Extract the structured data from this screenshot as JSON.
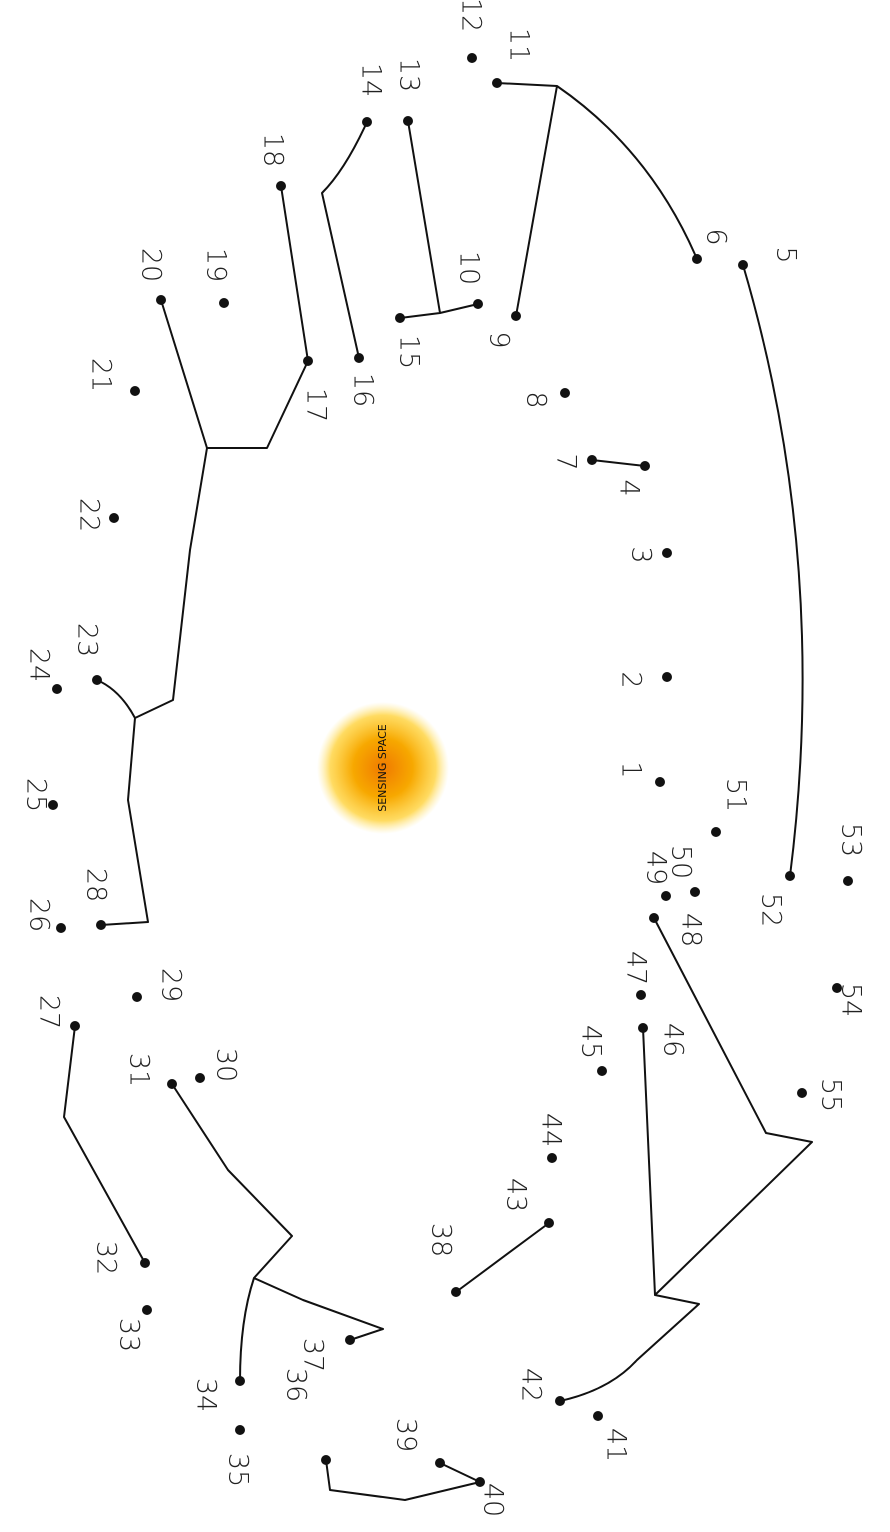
{
  "center_label": "SENSING SPACE",
  "nodes": [
    {
      "label": "1"
    },
    {
      "label": "2"
    },
    {
      "label": "3"
    },
    {
      "label": "4"
    },
    {
      "label": "5"
    },
    {
      "label": "6"
    },
    {
      "label": "7"
    },
    {
      "label": "8"
    },
    {
      "label": "9"
    },
    {
      "label": "10"
    },
    {
      "label": "11"
    },
    {
      "label": "12"
    },
    {
      "label": "13"
    },
    {
      "label": "14"
    },
    {
      "label": "15"
    },
    {
      "label": "16"
    },
    {
      "label": "17"
    },
    {
      "label": "18"
    },
    {
      "label": "19"
    },
    {
      "label": "20"
    },
    {
      "label": "21"
    },
    {
      "label": "22"
    },
    {
      "label": "23"
    },
    {
      "label": "24"
    },
    {
      "label": "25"
    },
    {
      "label": "26"
    },
    {
      "label": "27"
    },
    {
      "label": "28"
    },
    {
      "label": "29"
    },
    {
      "label": "30"
    },
    {
      "label": "31"
    },
    {
      "label": "32"
    },
    {
      "label": "33"
    },
    {
      "label": "34"
    },
    {
      "label": "35"
    },
    {
      "label": "36"
    },
    {
      "label": "37"
    },
    {
      "label": "38"
    },
    {
      "label": "39"
    },
    {
      "label": "40"
    },
    {
      "label": "41"
    },
    {
      "label": "42"
    },
    {
      "label": "43"
    },
    {
      "label": "44"
    },
    {
      "label": "45"
    },
    {
      "label": "46"
    },
    {
      "label": "47"
    },
    {
      "label": "48"
    },
    {
      "label": "49"
    },
    {
      "label": "50"
    },
    {
      "label": "51"
    },
    {
      "label": "52"
    },
    {
      "label": "53"
    },
    {
      "label": "54"
    },
    {
      "label": "55"
    }
  ]
}
